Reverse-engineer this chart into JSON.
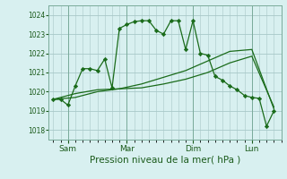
{
  "xlabel": "Pression niveau de la mer( hPa )",
  "bg_color": "#d8f0f0",
  "grid_color": "#a8c8c8",
  "line_color": "#1a6b1a",
  "ylim": [
    1017.5,
    1024.5
  ],
  "yticks": [
    1018,
    1019,
    1020,
    1021,
    1022,
    1023,
    1024
  ],
  "xlim": [
    -0.3,
    15.5
  ],
  "day_labels": [
    "Sam",
    "Mar",
    "Dim",
    "Lun"
  ],
  "day_positions": [
    1.0,
    5.0,
    9.5,
    13.5
  ],
  "vline_positions": [
    1.0,
    5.0,
    9.5,
    13.5
  ],
  "series1_x": [
    0,
    0.5,
    1.0,
    1.5,
    2.0,
    2.5,
    3.0,
    3.5,
    4.0,
    4.5,
    5.0,
    5.5,
    6.0,
    6.5,
    7.0,
    7.5,
    8.0,
    8.5,
    9.0,
    9.5,
    10.0,
    10.5,
    11.0,
    11.5,
    12.0,
    12.5,
    13.0,
    13.5,
    14.0,
    14.5,
    15.0
  ],
  "series1_y": [
    1019.6,
    1019.6,
    1019.3,
    1020.3,
    1021.2,
    1021.2,
    1021.1,
    1021.7,
    1020.2,
    1023.3,
    1023.5,
    1023.65,
    1023.7,
    1023.7,
    1023.2,
    1023.0,
    1023.7,
    1023.7,
    1022.2,
    1023.7,
    1022.0,
    1021.9,
    1020.8,
    1020.6,
    1020.3,
    1020.1,
    1019.8,
    1019.7,
    1019.65,
    1018.2,
    1019.0
  ],
  "series2_x": [
    0,
    1.5,
    3.0,
    4.5,
    6.0,
    7.5,
    9.0,
    10.5,
    12.0,
    13.5,
    15.0
  ],
  "series2_y": [
    1019.6,
    1019.9,
    1020.1,
    1020.15,
    1020.2,
    1020.4,
    1020.65,
    1021.0,
    1021.5,
    1021.85,
    1019.2
  ],
  "series3_x": [
    0,
    1.5,
    3.0,
    4.5,
    6.0,
    7.5,
    9.0,
    10.5,
    12.0,
    13.5,
    15.0
  ],
  "series3_y": [
    1019.6,
    1019.7,
    1020.0,
    1020.15,
    1020.4,
    1020.75,
    1021.1,
    1021.6,
    1022.1,
    1022.2,
    1019.1
  ]
}
